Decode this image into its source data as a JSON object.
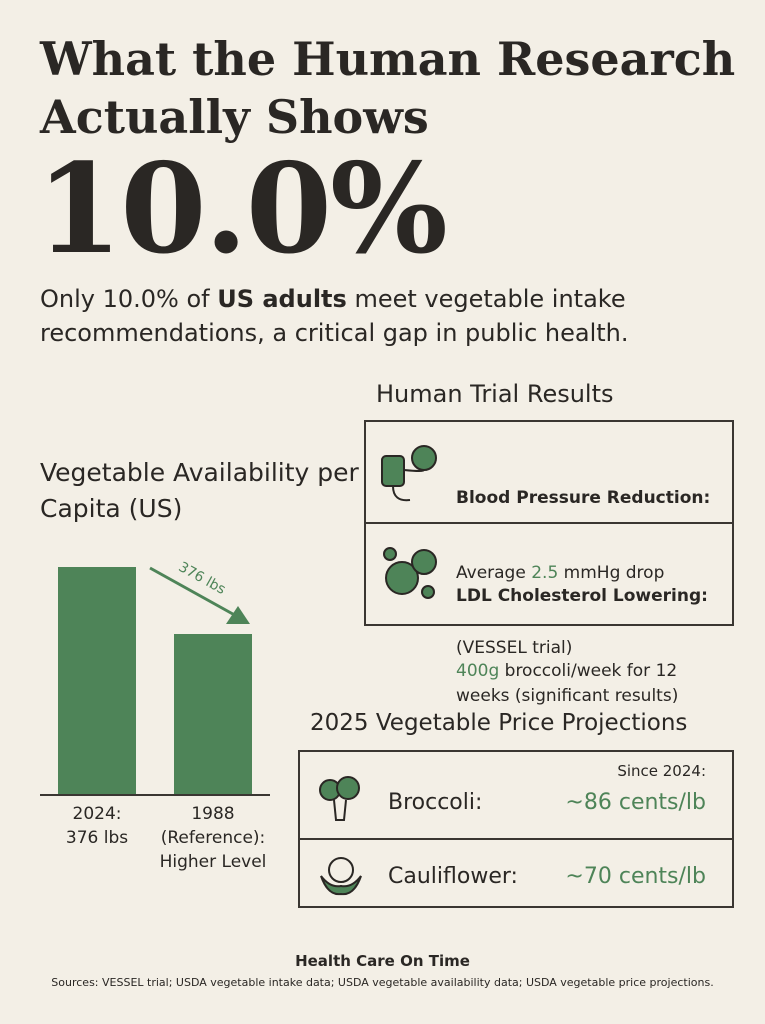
{
  "header": {
    "title": "What the Human Research Actually Shows"
  },
  "stat": {
    "value": "10.0%",
    "text_parts": [
      "Only 10.0% of ",
      "US adults",
      " meet vegetable intake recommendations, a critical gap in public health."
    ]
  },
  "availability": {
    "title": "Vegetable Availability per Capita (US)",
    "arrow_label": "376 lbs",
    "bars": [
      {
        "label_lines": [
          "2024:",
          "376 lbs"
        ]
      },
      {
        "label_lines": [
          "1988",
          "(Reference):",
          "Higher Level"
        ]
      }
    ]
  },
  "trials": {
    "title": "Human Trial Results",
    "items": [
      {
        "title": "Blood Pressure Reduction:",
        "text_parts": [
          "Average ",
          "2.5",
          " mmHg drop"
        ],
        "note": "(VESSEL trial)"
      },
      {
        "title": "LDL Cholesterol Lowering:",
        "text_parts": [
          "400g",
          " broccoli/week for 12 weeks (significant results)"
        ]
      }
    ]
  },
  "prices": {
    "title": "2025 Vegetable Price Projections",
    "since": "Since 2024:",
    "items": [
      {
        "name": "Broccoli:",
        "price": "~86 cents/lb"
      },
      {
        "name": "Cauliflower:",
        "price": "~70 cents/lb"
      }
    ]
  },
  "footer": {
    "brand": "Health Care On Time",
    "sources": "Sources: VESSEL trial; USDA vegetable intake data; USDA vegetable availability data; USDA vegetable price projections."
  }
}
